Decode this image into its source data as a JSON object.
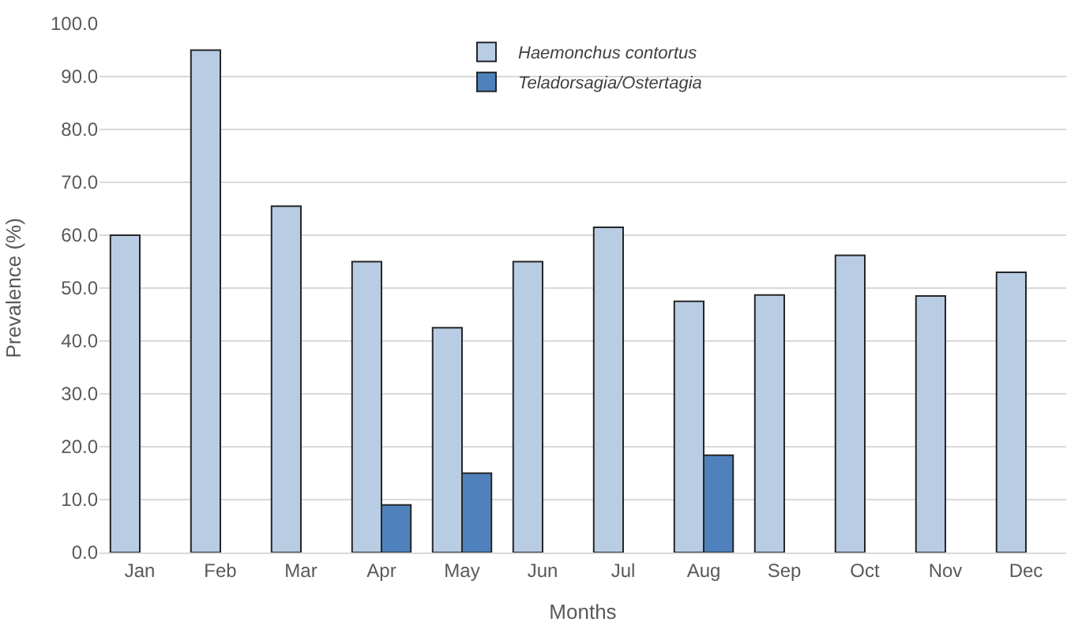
{
  "chart_data": {
    "type": "bar",
    "xlabel": "Months",
    "ylabel": "Prevalence (%)",
    "categories": [
      "Jan",
      "Feb",
      "Mar",
      "Apr",
      "May",
      "Jun",
      "Jul",
      "Aug",
      "Sep",
      "Oct",
      "Nov",
      "Dec"
    ],
    "series": [
      {
        "name": "Haemonchus contortus",
        "color": "#b8cce4",
        "values": [
          60.0,
          95.0,
          65.5,
          55.0,
          42.5,
          55.0,
          61.5,
          47.5,
          48.7,
          56.2,
          48.5,
          53.0
        ]
      },
      {
        "name": "Teladorsagia/Ostertagia",
        "color": "#4f81bd",
        "values": [
          null,
          null,
          null,
          9.0,
          15.0,
          null,
          null,
          18.4,
          null,
          null,
          null,
          null
        ]
      }
    ],
    "ylim": [
      0,
      100
    ],
    "yticks": [
      {
        "value": 0,
        "label": "0.0"
      },
      {
        "value": 10,
        "label": "10.0"
      },
      {
        "value": 20,
        "label": "20.0"
      },
      {
        "value": 30,
        "label": "30.0"
      },
      {
        "value": 40,
        "label": "40.0"
      },
      {
        "value": 50,
        "label": "50.0"
      },
      {
        "value": 60,
        "label": "60.0"
      },
      {
        "value": 70,
        "label": "70.0"
      },
      {
        "value": 80,
        "label": "80.0"
      },
      {
        "value": 90,
        "label": "90.0"
      },
      {
        "value": 100,
        "label": "100.0"
      }
    ],
    "grid": "y",
    "legend": "top"
  }
}
